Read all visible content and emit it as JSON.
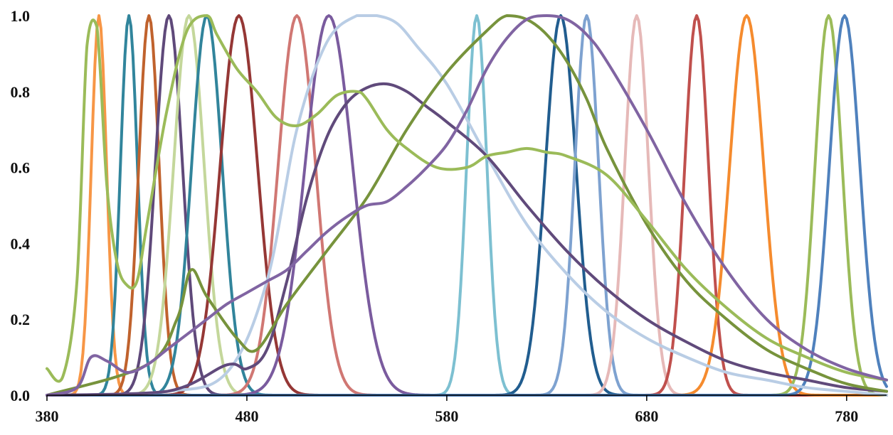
{
  "chart_data": {
    "type": "line",
    "title": "",
    "xlabel": "",
    "ylabel": "",
    "xlim": [
      380,
      800
    ],
    "ylim": [
      0,
      1
    ],
    "x_ticks": [
      380,
      480,
      580,
      680,
      780
    ],
    "y_ticks": [
      0,
      0.2,
      0.4,
      0.6,
      0.8,
      1
    ],
    "x_tick_labels": [
      "380",
      "480",
      "580",
      "680",
      "780"
    ],
    "y_tick_labels": [
      "0.0",
      "0.2",
      "0.4",
      "0.6",
      "0.8",
      "1.0"
    ],
    "grid": false,
    "legend": "none",
    "series": [
      {
        "color": "#f79646",
        "kind": "gauss",
        "center": 406,
        "fwhm": 9
      },
      {
        "color": "#31859c",
        "kind": "gauss",
        "center": 421,
        "fwhm": 10
      },
      {
        "color": "#c0622d",
        "kind": "gauss",
        "center": 431,
        "fwhm": 12
      },
      {
        "color": "#5f497a",
        "kind": "gauss",
        "center": 441,
        "fwhm": 16
      },
      {
        "color": "#c4d79b",
        "kind": "gauss",
        "center": 451,
        "fwhm": 18
      },
      {
        "color": "#31849b",
        "kind": "gauss",
        "center": 460,
        "fwhm": 18
      },
      {
        "color": "#953735",
        "kind": "gauss",
        "center": 476,
        "fwhm": 22
      },
      {
        "color": "#d07773",
        "kind": "gauss",
        "center": 505,
        "fwhm": 22
      },
      {
        "color": "#7a5b9e",
        "kind": "gauss",
        "center": 521,
        "fwhm": 28
      },
      {
        "color": "#7dc0d1",
        "kind": "gauss",
        "center": 595,
        "fwhm": 12
      },
      {
        "color": "#215d8f",
        "kind": "gauss",
        "center": 637,
        "fwhm": 18
      },
      {
        "color": "#7ea2d0",
        "kind": "gauss",
        "center": 650,
        "fwhm": 14
      },
      {
        "color": "#e6b9b8",
        "kind": "gauss",
        "center": 675,
        "fwhm": 14
      },
      {
        "color": "#c0504d",
        "kind": "gauss",
        "center": 705,
        "fwhm": 14
      },
      {
        "color": "#f58b2e",
        "kind": "gauss",
        "center": 730,
        "fwhm": 20
      },
      {
        "color": "#9bbb59",
        "kind": "gauss",
        "center": 771,
        "fwhm": 16
      },
      {
        "color": "#4f81bd",
        "kind": "gauss",
        "center": 779,
        "fwhm": 18
      },
      {
        "color": "#b9cde5",
        "kind": "points",
        "x": [
          380,
          440,
          470,
          490,
          505,
          520,
          535,
          545,
          555,
          565,
          580,
          600,
          620,
          640,
          660,
          680,
          700,
          720,
          740,
          760,
          780,
          800
        ],
        "y": [
          0.0,
          0.01,
          0.06,
          0.3,
          0.7,
          0.93,
          1.0,
          1.0,
          0.98,
          0.92,
          0.82,
          0.63,
          0.45,
          0.32,
          0.22,
          0.15,
          0.1,
          0.06,
          0.04,
          0.02,
          0.01,
          0.0
        ]
      },
      {
        "color": "#604a7b",
        "kind": "points",
        "x": [
          380,
          440,
          470,
          480,
          490,
          500,
          510,
          520,
          530,
          540,
          550,
          560,
          570,
          580,
          600,
          620,
          640,
          660,
          680,
          700,
          720,
          740,
          760,
          780,
          800
        ],
        "y": [
          0.0,
          0.01,
          0.08,
          0.07,
          0.12,
          0.3,
          0.52,
          0.68,
          0.77,
          0.81,
          0.82,
          0.8,
          0.76,
          0.72,
          0.63,
          0.5,
          0.38,
          0.28,
          0.2,
          0.14,
          0.09,
          0.06,
          0.04,
          0.02,
          0.01
        ]
      },
      {
        "color": "#77933c",
        "kind": "points",
        "x": [
          380,
          430,
          445,
          452,
          460,
          475,
          485,
          500,
          520,
          540,
          560,
          580,
          600,
          610,
          620,
          630,
          640,
          650,
          660,
          680,
          700,
          720,
          740,
          760,
          780,
          800
        ],
        "y": [
          0.0,
          0.08,
          0.2,
          0.33,
          0.26,
          0.15,
          0.12,
          0.24,
          0.38,
          0.52,
          0.7,
          0.85,
          0.96,
          1.0,
          0.99,
          0.95,
          0.88,
          0.78,
          0.65,
          0.45,
          0.3,
          0.2,
          0.12,
          0.07,
          0.03,
          0.01
        ]
      },
      {
        "color": "#9bbb59",
        "kind": "points",
        "x": [
          380,
          388,
          395,
          400,
          405,
          410,
          415,
          420,
          425,
          430,
          440,
          450,
          460,
          465,
          475,
          485,
          495,
          505,
          515,
          525,
          535,
          540,
          550,
          560,
          575,
          590,
          600,
          610,
          620,
          630,
          640,
          660,
          680,
          700,
          720,
          740,
          760,
          780,
          800
        ],
        "y": [
          0.07,
          0.05,
          0.3,
          0.92,
          0.97,
          0.55,
          0.35,
          0.29,
          0.3,
          0.45,
          0.75,
          0.96,
          1.0,
          0.95,
          0.86,
          0.8,
          0.73,
          0.71,
          0.74,
          0.79,
          0.8,
          0.78,
          0.7,
          0.65,
          0.6,
          0.6,
          0.63,
          0.64,
          0.65,
          0.64,
          0.63,
          0.58,
          0.46,
          0.33,
          0.23,
          0.15,
          0.1,
          0.06,
          0.04
        ]
      },
      {
        "color": "#8064a2",
        "kind": "points",
        "x": [
          380,
          395,
          402,
          410,
          420,
          430,
          440,
          450,
          460,
          470,
          480,
          490,
          500,
          510,
          520,
          530,
          540,
          550,
          560,
          570,
          580,
          590,
          600,
          610,
          620,
          630,
          640,
          650,
          660,
          680,
          700,
          720,
          740,
          760,
          780,
          800
        ],
        "y": [
          0.0,
          0.02,
          0.1,
          0.09,
          0.06,
          0.08,
          0.12,
          0.16,
          0.2,
          0.24,
          0.27,
          0.3,
          0.33,
          0.38,
          0.43,
          0.47,
          0.5,
          0.51,
          0.55,
          0.6,
          0.66,
          0.75,
          0.86,
          0.94,
          0.99,
          1.0,
          0.99,
          0.95,
          0.88,
          0.7,
          0.5,
          0.33,
          0.2,
          0.12,
          0.07,
          0.04
        ]
      }
    ]
  }
}
